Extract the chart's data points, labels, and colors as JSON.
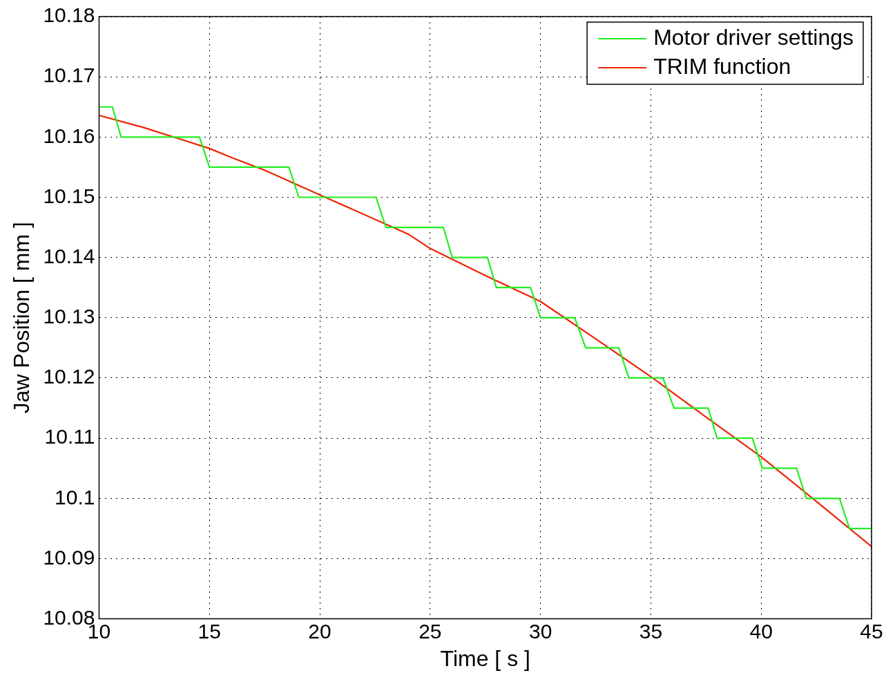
{
  "chart_data": {
    "type": "line",
    "xlabel": "Time [ s ]",
    "ylabel": "Jaw Position [ mm ]",
    "xlim": [
      10,
      45
    ],
    "xticks": [
      10,
      15,
      20,
      25,
      30,
      35,
      40,
      45
    ],
    "ylim": [
      10.08,
      10.18
    ],
    "yticks": [
      10.08,
      10.09,
      10.1,
      10.11,
      10.12,
      10.13,
      10.14,
      10.15,
      10.16,
      10.17,
      10.18
    ],
    "grid": true,
    "legend": "top right",
    "line_style": "solid",
    "marker": "none",
    "series": [
      {
        "name": "Motor driver settings",
        "color": "#22ee22",
        "x": [
          10,
          10.6,
          11,
          14.55,
          15,
          18.6,
          19.05,
          22.55,
          23,
          25.6,
          26,
          27.6,
          28,
          29.55,
          30,
          31.55,
          32.05,
          33.55,
          34,
          35.55,
          36.05,
          37.6,
          38,
          39.6,
          40.05,
          41.6,
          42.05,
          43.55,
          44,
          45
        ],
        "values": [
          10.165,
          10.165,
          10.16,
          10.16,
          10.155,
          10.155,
          10.15,
          10.15,
          10.145,
          10.145,
          10.14,
          10.14,
          10.135,
          10.135,
          10.13,
          10.13,
          10.125,
          10.125,
          10.12,
          10.12,
          10.115,
          10.115,
          10.11,
          10.11,
          10.105,
          10.105,
          10.1,
          10.1,
          10.095,
          10.095
        ]
      },
      {
        "name": "TRIM function",
        "color": "#ee2200",
        "x": [
          10,
          12,
          15,
          16,
          17.5,
          20,
          24,
          25,
          27.5,
          30,
          32.5,
          35,
          37.5,
          40,
          42.5,
          45
        ],
        "values": [
          10.1636,
          10.1616,
          10.1581,
          10.1566,
          10.1545,
          10.1504,
          10.1439,
          10.1415,
          10.137,
          10.1327,
          10.1265,
          10.1202,
          10.1135,
          10.1069,
          10.0995,
          10.092
        ]
      }
    ]
  }
}
